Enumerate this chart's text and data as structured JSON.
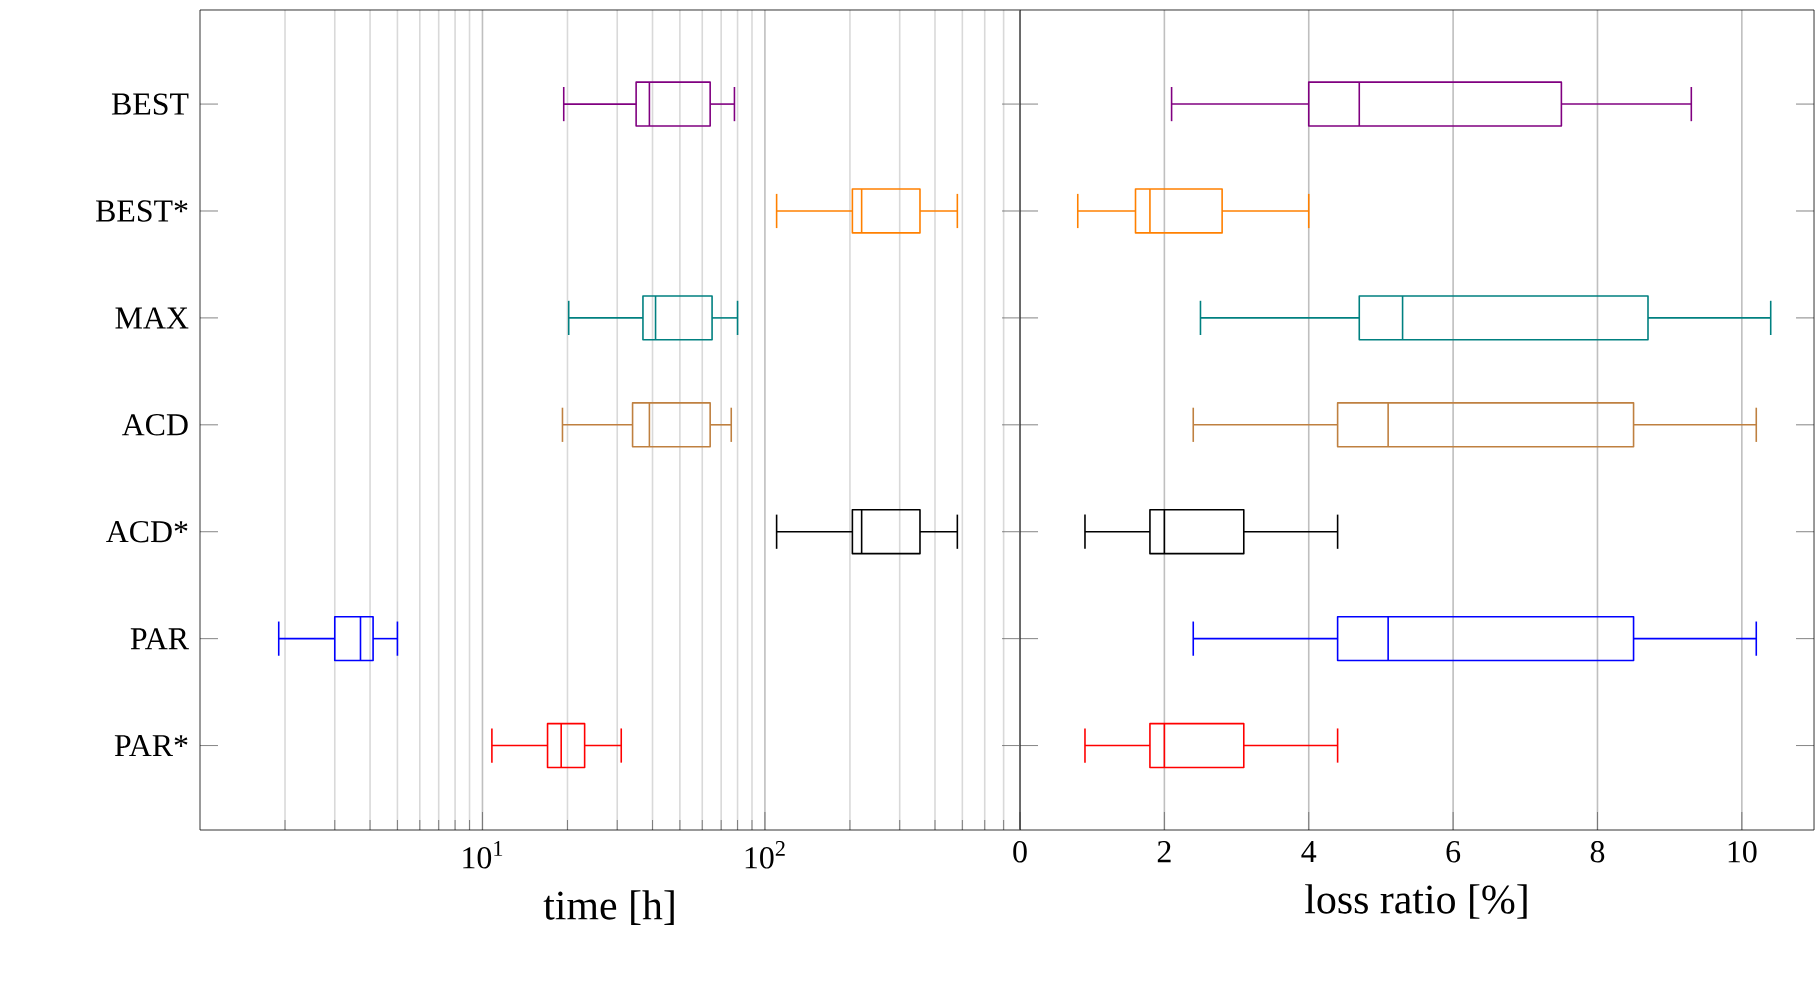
{
  "chart_data": [
    {
      "type": "box",
      "orientation": "horizontal",
      "log": "x",
      "grid": "x",
      "xlabel": "time [h]",
      "xlim": [
        1,
        800
      ],
      "xticks": [
        {
          "value": 10,
          "label": "10$^{1}$"
        },
        {
          "value": 100,
          "label": "10$^{2}$"
        }
      ],
      "categories": [
        "BEST",
        "BEST*",
        "MAX",
        "ACD",
        "ACD*",
        "PAR",
        "PAR*"
      ],
      "colors": [
        "#800080",
        "#ff8000",
        "#008080",
        "#bf8040",
        "#000000",
        "#0000ff",
        "#ff0000"
      ],
      "boxes": [
        {
          "low": 19.4,
          "q1": 35,
          "median": 39,
          "q3": 64,
          "high": 78
        },
        {
          "low": 110,
          "q1": 204,
          "median": 220,
          "q3": 354,
          "high": 480
        },
        {
          "low": 20.2,
          "q1": 37,
          "median": 41,
          "q3": 65,
          "high": 80
        },
        {
          "low": 19.2,
          "q1": 34,
          "median": 39,
          "q3": 64,
          "high": 76
        },
        {
          "low": 110,
          "q1": 204,
          "median": 220,
          "q3": 354,
          "high": 480
        },
        {
          "low": 1.9,
          "q1": 3.0,
          "median": 3.7,
          "q3": 4.1,
          "high": 5.0
        },
        {
          "low": 10.8,
          "q1": 17,
          "median": 19,
          "q3": 23,
          "high": 31
        }
      ]
    },
    {
      "type": "box",
      "orientation": "horizontal",
      "grid": "x",
      "xlabel": "loss ratio [%]",
      "xlim": [
        0,
        11
      ],
      "xticks": [
        0,
        2,
        4,
        6,
        8,
        10
      ],
      "tick_labels": "x",
      "categories": [
        null,
        null,
        null,
        null,
        null,
        null,
        null
      ],
      "colors": [
        "#800080",
        "#ff8000",
        "#008080",
        "#bf8040",
        "#000000",
        "#0000ff",
        "#ff0000"
      ],
      "boxes": [
        {
          "low": 2.1,
          "q1": 4.0,
          "median": 4.7,
          "q3": 7.5,
          "high": 9.3
        },
        {
          "low": 0.8,
          "q1": 1.6,
          "median": 1.8,
          "q3": 2.8,
          "high": 4.0
        },
        {
          "low": 2.5,
          "q1": 4.7,
          "median": 5.3,
          "q3": 8.7,
          "high": 10.4
        },
        {
          "low": 2.4,
          "q1": 4.4,
          "median": 5.1,
          "q3": 8.5,
          "high": 10.2
        },
        {
          "low": 0.9,
          "q1": 1.8,
          "median": 2.0,
          "q3": 3.1,
          "high": 4.4
        },
        {
          "low": 2.4,
          "q1": 4.4,
          "median": 5.1,
          "q3": 8.5,
          "high": 10.2
        },
        {
          "low": 0.9,
          "q1": 1.8,
          "median": 2.0,
          "q3": 3.1,
          "high": 4.4
        }
      ]
    }
  ]
}
